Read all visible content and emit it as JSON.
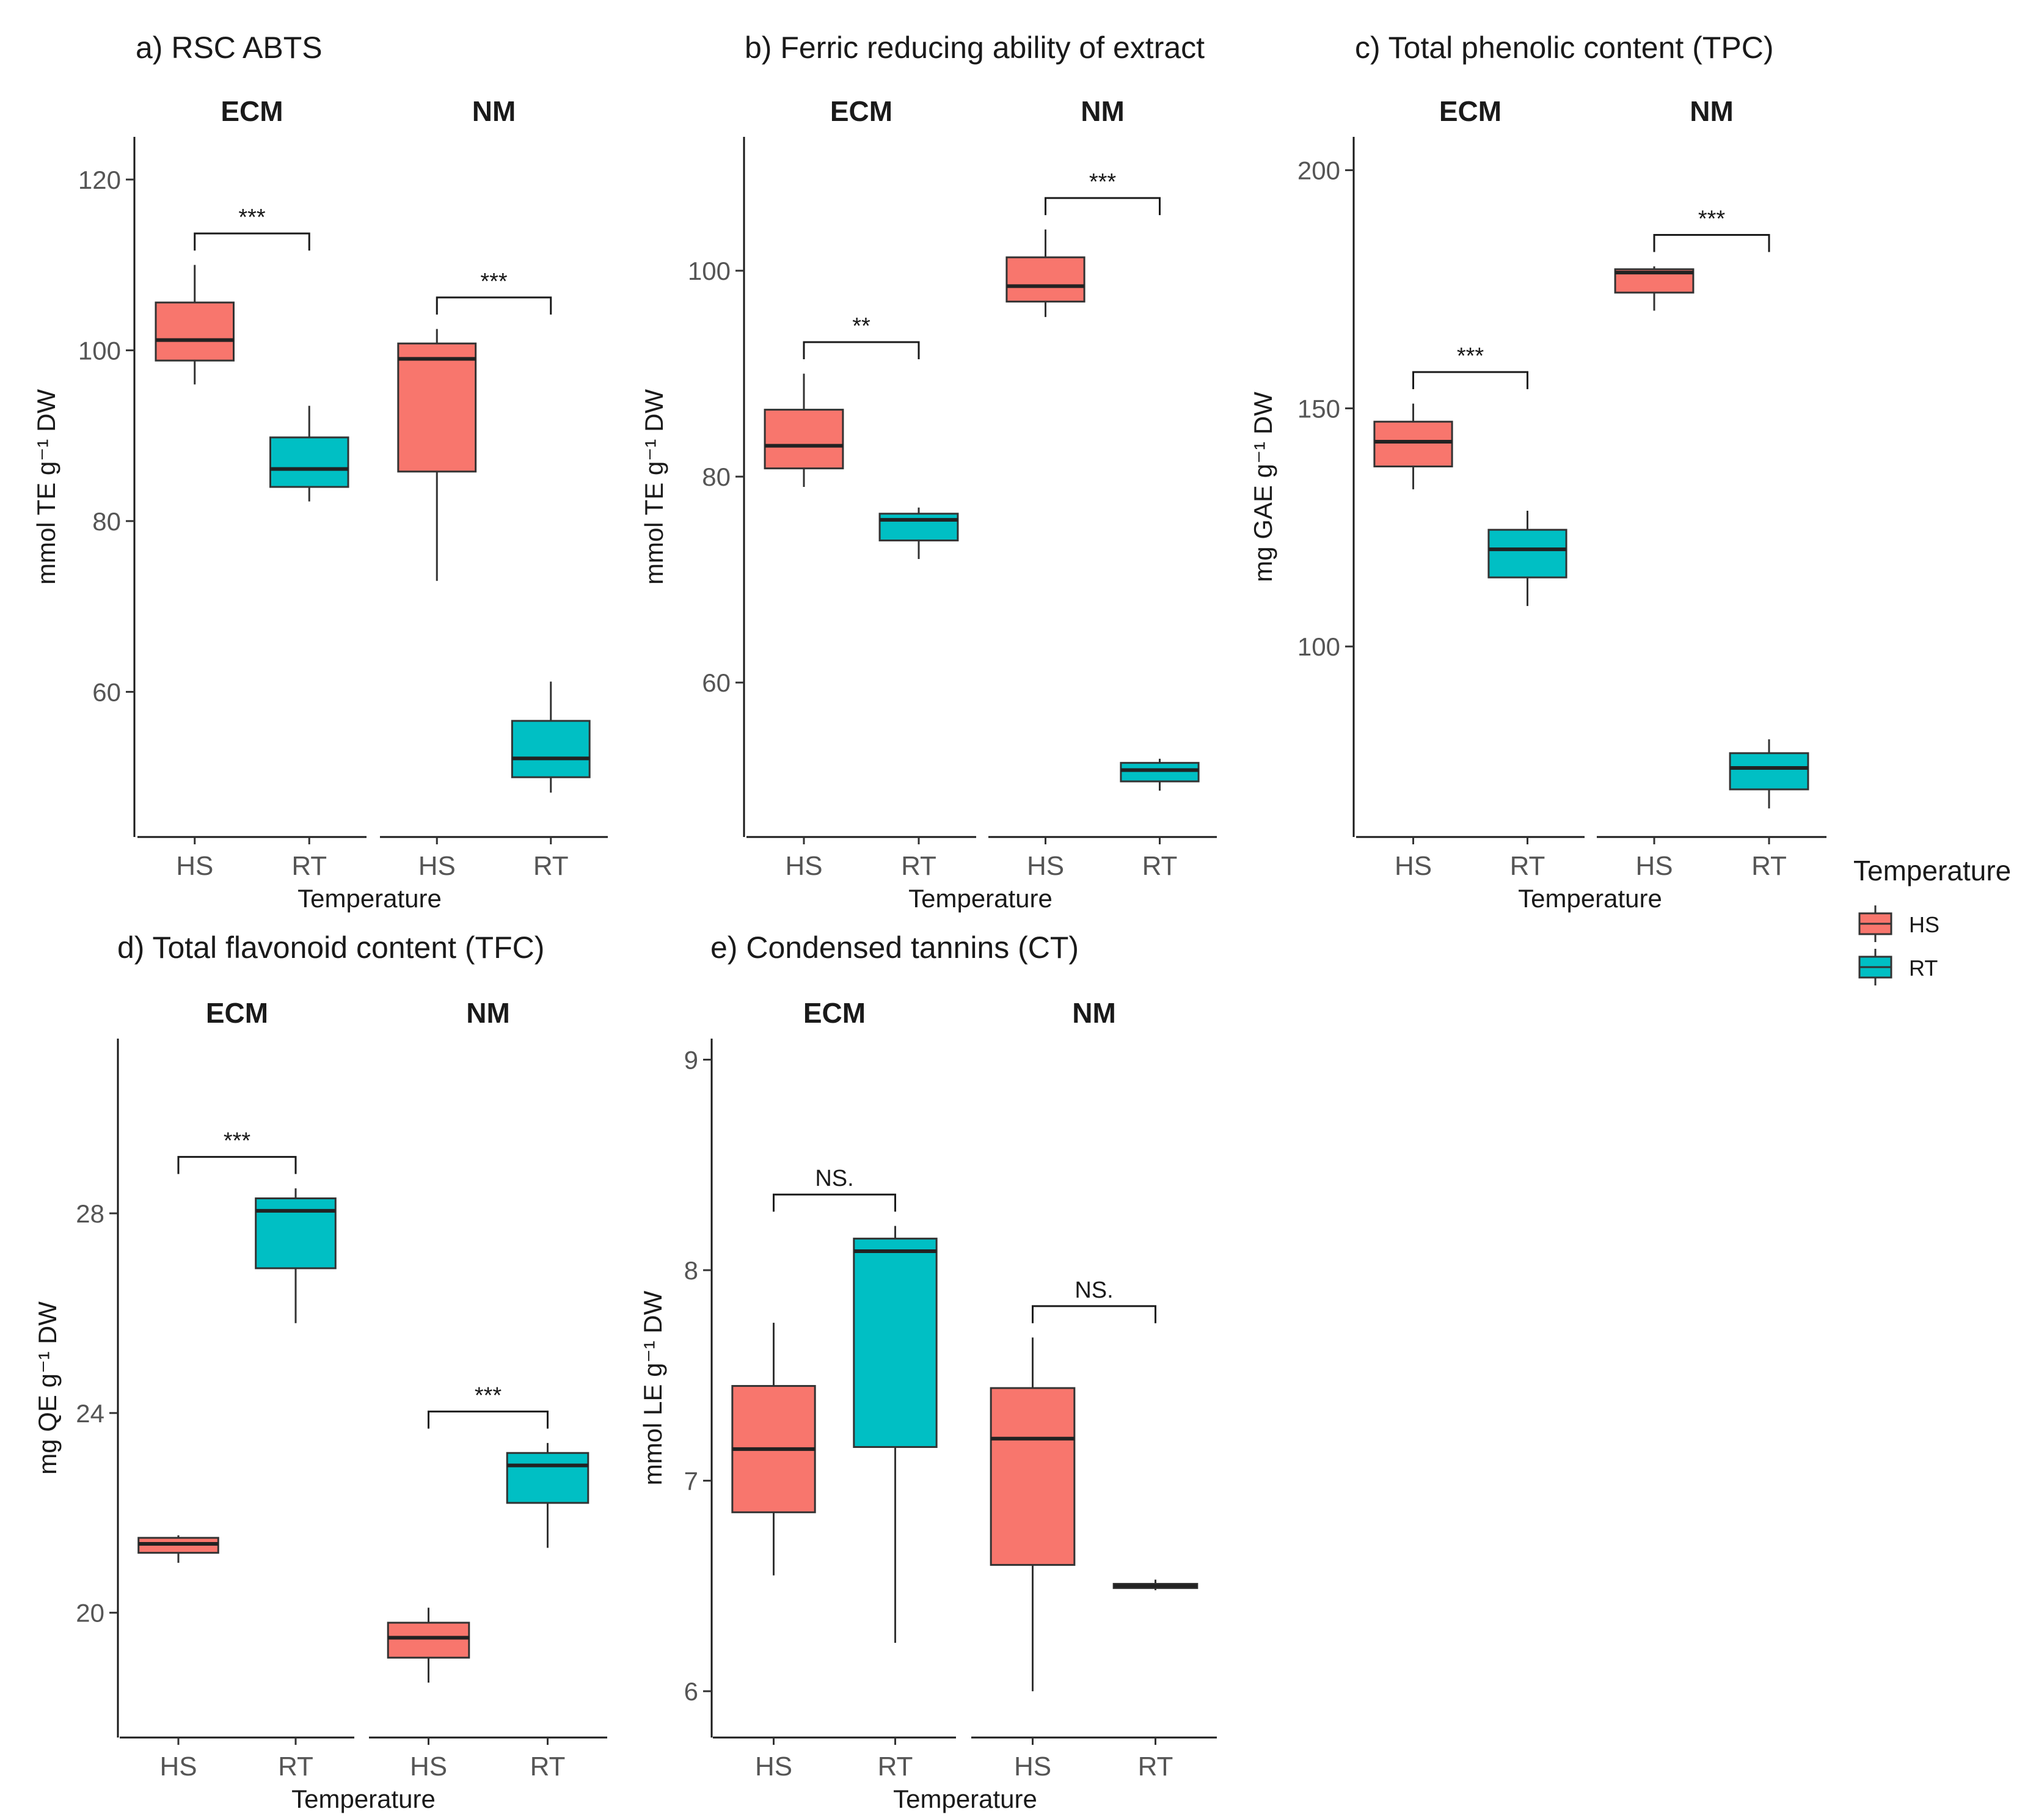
{
  "figure": {
    "shared_x_label": "Temperature",
    "legend": {
      "title": "Temperature",
      "entries": [
        {
          "name": "HS",
          "color": "#F8766D"
        },
        {
          "name": "RT",
          "color": "#00BFC4"
        }
      ],
      "placement": "right"
    }
  },
  "chart_data": [
    {
      "type": "box",
      "title": "a) RSC ABTS",
      "ylabel": "mmol TE g⁻¹ DW",
      "xlabel": "Temperature",
      "ylim": [
        43,
        125
      ],
      "yticks": [
        60,
        80,
        100,
        120
      ],
      "facets": [
        {
          "name": "ECM",
          "significance": "***",
          "boxes": [
            {
              "label": "HS",
              "color": "#F8766D",
              "min": 96,
              "q1": 98.8,
              "median": 101.2,
              "q3": 105.6,
              "max": 110
            },
            {
              "label": "RT",
              "color": "#00BFC4",
              "min": 82.3,
              "q1": 84,
              "median": 86.1,
              "q3": 89.8,
              "max": 93.5
            }
          ]
        },
        {
          "name": "NM",
          "significance": "***",
          "boxes": [
            {
              "label": "HS",
              "color": "#F8766D",
              "min": 73,
              "q1": 85.8,
              "median": 99,
              "q3": 100.8,
              "max": 102.5
            },
            {
              "label": "RT",
              "color": "#00BFC4",
              "min": 48.2,
              "q1": 50,
              "median": 52.2,
              "q3": 56.6,
              "max": 61.2
            }
          ]
        }
      ]
    },
    {
      "type": "box",
      "title": "b) Ferric reducing ability of extract",
      "ylabel": "mmol TE g⁻¹ DW",
      "xlabel": "Temperature",
      "ylim": [
        45,
        113
      ],
      "yticks": [
        60,
        80,
        100
      ],
      "facets": [
        {
          "name": "ECM",
          "significance": "**",
          "boxes": [
            {
              "label": "HS",
              "color": "#F8766D",
              "min": 79,
              "q1": 80.8,
              "median": 83,
              "q3": 86.5,
              "max": 90
            },
            {
              "label": "RT",
              "color": "#00BFC4",
              "min": 72,
              "q1": 73.8,
              "median": 75.8,
              "q3": 76.4,
              "max": 77
            }
          ]
        },
        {
          "name": "NM",
          "significance": "***",
          "boxes": [
            {
              "label": "HS",
              "color": "#F8766D",
              "min": 95.5,
              "q1": 97,
              "median": 98.5,
              "q3": 101.3,
              "max": 104
            },
            {
              "label": "RT",
              "color": "#00BFC4",
              "min": 49.5,
              "q1": 50.4,
              "median": 51.5,
              "q3": 52.2,
              "max": 52.6
            }
          ]
        }
      ]
    },
    {
      "type": "box",
      "title": "c) Total phenolic content (TPC)",
      "ylabel": "mg GAE g⁻¹ DW",
      "xlabel": "Temperature",
      "ylim": [
        60,
        207
      ],
      "yticks": [
        100,
        150,
        200
      ],
      "facets": [
        {
          "name": "ECM",
          "significance": "***",
          "boxes": [
            {
              "label": "HS",
              "color": "#F8766D",
              "min": 133,
              "q1": 137.8,
              "median": 143,
              "q3": 147.2,
              "max": 151
            },
            {
              "label": "RT",
              "color": "#00BFC4",
              "min": 108.5,
              "q1": 114.5,
              "median": 120.4,
              "q3": 124.5,
              "max": 128.5
            }
          ]
        },
        {
          "name": "NM",
          "significance": "***",
          "boxes": [
            {
              "label": "HS",
              "color": "#F8766D",
              "min": 170.5,
              "q1": 174.3,
              "median": 178.5,
              "q3": 179.2,
              "max": 179.8
            },
            {
              "label": "RT",
              "color": "#00BFC4",
              "min": 66,
              "q1": 70,
              "median": 74.5,
              "q3": 77.6,
              "max": 80.5
            }
          ]
        }
      ]
    },
    {
      "type": "box",
      "title": "d) Total flavonoid content (TFC)",
      "ylabel": "mg QE g⁻¹ DW",
      "xlabel": "Temperature",
      "ylim": [
        17.5,
        31.5
      ],
      "yticks": [
        20,
        24,
        28
      ],
      "facets": [
        {
          "name": "ECM",
          "significance": "***",
          "boxes": [
            {
              "label": "HS",
              "color": "#F8766D",
              "min": 21,
              "q1": 21.2,
              "median": 21.38,
              "q3": 21.5,
              "max": 21.55
            },
            {
              "label": "RT",
              "color": "#00BFC4",
              "min": 25.8,
              "q1": 26.9,
              "median": 28.05,
              "q3": 28.3,
              "max": 28.5
            }
          ]
        },
        {
          "name": "NM",
          "significance": "***",
          "boxes": [
            {
              "label": "HS",
              "color": "#F8766D",
              "min": 18.6,
              "q1": 19.1,
              "median": 19.5,
              "q3": 19.8,
              "max": 20.1
            },
            {
              "label": "RT",
              "color": "#00BFC4",
              "min": 21.3,
              "q1": 22.2,
              "median": 22.95,
              "q3": 23.2,
              "max": 23.4
            }
          ]
        }
      ]
    },
    {
      "type": "box",
      "title": "e) Condensed tannins (CT)",
      "ylabel": "mmol LE g⁻¹ DW",
      "xlabel": "Temperature",
      "ylim": [
        5.78,
        9.1
      ],
      "yticks": [
        6,
        7,
        8,
        9
      ],
      "facets": [
        {
          "name": "ECM",
          "significance": "NS.",
          "boxes": [
            {
              "label": "HS",
              "color": "#F8766D",
              "min": 6.55,
              "q1": 6.85,
              "median": 7.15,
              "q3": 7.45,
              "max": 7.75
            },
            {
              "label": "RT",
              "color": "#00BFC4",
              "min": 6.23,
              "q1": 7.16,
              "median": 8.09,
              "q3": 8.15,
              "max": 8.21
            }
          ]
        },
        {
          "name": "NM",
          "significance": "NS.",
          "boxes": [
            {
              "label": "HS",
              "color": "#F8766D",
              "min": 6,
              "q1": 6.6,
              "median": 7.2,
              "q3": 7.44,
              "max": 7.68
            },
            {
              "label": "RT",
              "color": "#00BFC4",
              "min": 6.48,
              "q1": 6.49,
              "median": 6.5,
              "q3": 6.51,
              "max": 6.53
            }
          ]
        }
      ]
    }
  ]
}
